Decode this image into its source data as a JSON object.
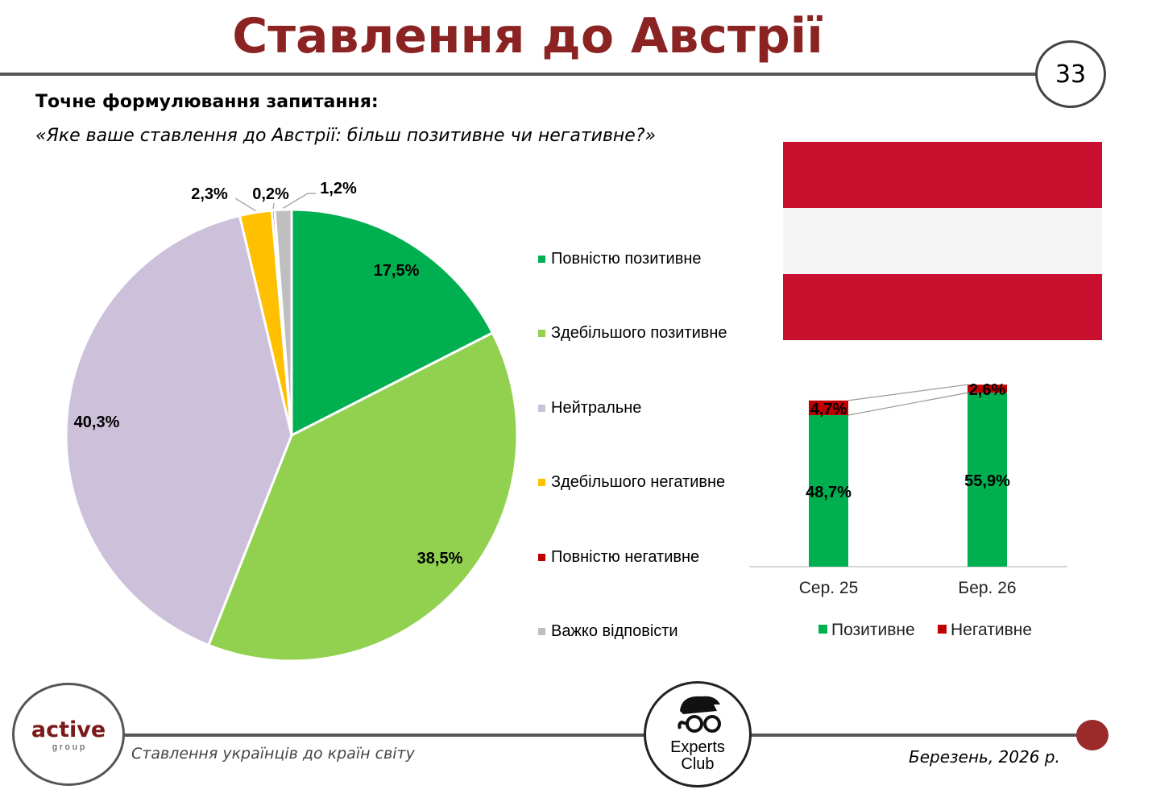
{
  "header": {
    "title": "Ставлення до Австрії",
    "page_number": "33"
  },
  "question": {
    "heading": "Точне формулювання запитання:",
    "text": "«Яке ваше ставлення до Австрії: більш позитивне чи негативне?»"
  },
  "chart_data": [
    {
      "type": "pie",
      "categories": [
        "Повністю позитивне",
        "Здебільшого позитивне",
        "Нейтральне",
        "Здебільшого негативне",
        "Повністю негативне",
        "Важко відповісти"
      ],
      "values": [
        17.5,
        38.5,
        40.3,
        2.3,
        0.2,
        1.2
      ],
      "labels": [
        "17,5%",
        "38,5%",
        "40,3%",
        "2,3%",
        "0,2%",
        "1,2%"
      ],
      "colors": [
        "#00b050",
        "#92d050",
        "#ccc0da",
        "#ffc000",
        "#c00000",
        "#bfbfbf"
      ],
      "legend_position": "right"
    },
    {
      "type": "bar",
      "stacked": true,
      "categories": [
        "Сер. 25",
        "Бер. 26"
      ],
      "series": [
        {
          "name": "Позитивне",
          "values": [
            48.7,
            55.9
          ],
          "labels": [
            "48,7%",
            "55,9%"
          ],
          "color": "#00b050"
        },
        {
          "name": "Негативне",
          "values": [
            4.7,
            2.6
          ],
          "labels": [
            "4,7%",
            "2,6%"
          ],
          "color": "#c00000"
        }
      ],
      "legend_position": "bottom"
    }
  ],
  "flag": {
    "colors": [
      "#c8102e",
      "#f5f5f5",
      "#c8102e"
    ]
  },
  "footer": {
    "left_logo": {
      "main": "active",
      "sub": "g r o u p"
    },
    "right_logo": {
      "line1": "Experts",
      "line2": "Club"
    },
    "survey_title": "Ставлення українців до країн світу",
    "date": "Березень, 2026 р."
  }
}
